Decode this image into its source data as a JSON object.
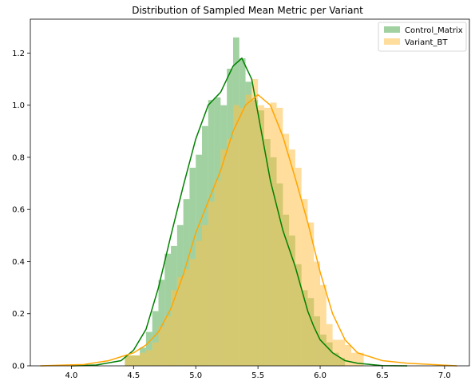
{
  "chart_data": {
    "type": "histogram",
    "title": "Distribution of Sampled Mean Metric per Variant",
    "xlabel": "",
    "ylabel": "",
    "xlim": [
      3.67,
      7.2
    ],
    "ylim": [
      0,
      1.33
    ],
    "x_ticks": [
      4.0,
      4.5,
      5.0,
      5.5,
      6.0,
      6.5,
      7.0
    ],
    "x_tick_labels": [
      "4.0",
      "4.5",
      "5.0",
      "5.5",
      "6.0",
      "6.5",
      "7.0"
    ],
    "y_ticks": [
      0.0,
      0.2,
      0.4,
      0.6,
      0.8,
      1.0,
      1.2
    ],
    "y_tick_labels": [
      "0.0",
      "0.2",
      "0.4",
      "0.6",
      "0.8",
      "1.0",
      "1.2"
    ],
    "grid": false,
    "legend_position": "top-right",
    "series": [
      {
        "name": "Control_Matrix",
        "color": "#008000",
        "fill_color": "#2e9a2e",
        "fill_opacity": 0.45,
        "bins": [
          {
            "x0": 4.43,
            "x1": 4.55,
            "y": 0.04
          },
          {
            "x0": 4.55,
            "x1": 4.6,
            "y": 0.07
          },
          {
            "x0": 4.6,
            "x1": 4.65,
            "y": 0.13
          },
          {
            "x0": 4.65,
            "x1": 4.7,
            "y": 0.21
          },
          {
            "x0": 4.7,
            "x1": 4.75,
            "y": 0.33
          },
          {
            "x0": 4.75,
            "x1": 4.8,
            "y": 0.43
          },
          {
            "x0": 4.8,
            "x1": 4.85,
            "y": 0.46
          },
          {
            "x0": 4.85,
            "x1": 4.9,
            "y": 0.54
          },
          {
            "x0": 4.9,
            "x1": 4.95,
            "y": 0.64
          },
          {
            "x0": 4.95,
            "x1": 5.0,
            "y": 0.76
          },
          {
            "x0": 5.0,
            "x1": 5.05,
            "y": 0.81
          },
          {
            "x0": 5.05,
            "x1": 5.1,
            "y": 0.92
          },
          {
            "x0": 5.1,
            "x1": 5.15,
            "y": 1.02
          },
          {
            "x0": 5.15,
            "x1": 5.2,
            "y": 1.03
          },
          {
            "x0": 5.2,
            "x1": 5.25,
            "y": 1.0
          },
          {
            "x0": 5.25,
            "x1": 5.3,
            "y": 1.14
          },
          {
            "x0": 5.3,
            "x1": 5.35,
            "y": 1.26
          },
          {
            "x0": 5.35,
            "x1": 5.4,
            "y": 1.18
          },
          {
            "x0": 5.4,
            "x1": 5.45,
            "y": 1.09
          },
          {
            "x0": 5.45,
            "x1": 5.5,
            "y": 1.02
          },
          {
            "x0": 5.5,
            "x1": 5.55,
            "y": 0.98
          },
          {
            "x0": 5.55,
            "x1": 5.6,
            "y": 0.87
          },
          {
            "x0": 5.6,
            "x1": 5.65,
            "y": 0.8
          },
          {
            "x0": 5.65,
            "x1": 5.7,
            "y": 0.7
          },
          {
            "x0": 5.7,
            "x1": 5.75,
            "y": 0.58
          },
          {
            "x0": 5.75,
            "x1": 5.8,
            "y": 0.5
          },
          {
            "x0": 5.8,
            "x1": 5.85,
            "y": 0.39
          },
          {
            "x0": 5.85,
            "x1": 5.9,
            "y": 0.29
          },
          {
            "x0": 5.9,
            "x1": 5.95,
            "y": 0.26
          },
          {
            "x0": 5.95,
            "x1": 6.0,
            "y": 0.19
          },
          {
            "x0": 6.0,
            "x1": 6.05,
            "y": 0.12
          },
          {
            "x0": 6.05,
            "x1": 6.1,
            "y": 0.09
          },
          {
            "x0": 6.1,
            "x1": 6.15,
            "y": 0.05
          },
          {
            "x0": 6.15,
            "x1": 6.2,
            "y": 0.03
          }
        ],
        "kde": [
          [
            4.0,
            0.0
          ],
          [
            4.2,
            0.003
          ],
          [
            4.4,
            0.02
          ],
          [
            4.5,
            0.06
          ],
          [
            4.6,
            0.14
          ],
          [
            4.7,
            0.3
          ],
          [
            4.8,
            0.5
          ],
          [
            4.9,
            0.69
          ],
          [
            5.0,
            0.87
          ],
          [
            5.1,
            1.0
          ],
          [
            5.2,
            1.05
          ],
          [
            5.3,
            1.15
          ],
          [
            5.37,
            1.18
          ],
          [
            5.45,
            1.1
          ],
          [
            5.5,
            0.97
          ],
          [
            5.6,
            0.71
          ],
          [
            5.7,
            0.52
          ],
          [
            5.8,
            0.38
          ],
          [
            5.9,
            0.21
          ],
          [
            5.95,
            0.15
          ],
          [
            6.0,
            0.1
          ],
          [
            6.1,
            0.05
          ],
          [
            6.2,
            0.02
          ],
          [
            6.3,
            0.01
          ],
          [
            6.5,
            0.001
          ],
          [
            6.7,
            0.0
          ]
        ]
      },
      {
        "name": "Variant_BT",
        "color": "#ffa500",
        "fill_color": "#ffc14a",
        "fill_opacity": 0.55,
        "bins": [
          {
            "x0": 4.43,
            "x1": 4.55,
            "y": 0.04
          },
          {
            "x0": 4.55,
            "x1": 4.6,
            "y": 0.05
          },
          {
            "x0": 4.6,
            "x1": 4.65,
            "y": 0.06
          },
          {
            "x0": 4.65,
            "x1": 4.7,
            "y": 0.09
          },
          {
            "x0": 4.7,
            "x1": 4.75,
            "y": 0.15
          },
          {
            "x0": 4.75,
            "x1": 4.8,
            "y": 0.19
          },
          {
            "x0": 4.8,
            "x1": 4.85,
            "y": 0.29
          },
          {
            "x0": 4.85,
            "x1": 4.9,
            "y": 0.34
          },
          {
            "x0": 4.9,
            "x1": 4.95,
            "y": 0.37
          },
          {
            "x0": 4.95,
            "x1": 5.0,
            "y": 0.41
          },
          {
            "x0": 5.0,
            "x1": 5.05,
            "y": 0.48
          },
          {
            "x0": 5.05,
            "x1": 5.1,
            "y": 0.54
          },
          {
            "x0": 5.1,
            "x1": 5.15,
            "y": 0.63
          },
          {
            "x0": 5.15,
            "x1": 5.2,
            "y": 0.71
          },
          {
            "x0": 5.2,
            "x1": 5.25,
            "y": 0.83
          },
          {
            "x0": 5.25,
            "x1": 5.3,
            "y": 0.87
          },
          {
            "x0": 5.3,
            "x1": 5.35,
            "y": 1.0
          },
          {
            "x0": 5.35,
            "x1": 5.4,
            "y": 0.99
          },
          {
            "x0": 5.4,
            "x1": 5.45,
            "y": 1.04
          },
          {
            "x0": 5.45,
            "x1": 5.5,
            "y": 1.1
          },
          {
            "x0": 5.5,
            "x1": 5.55,
            "y": 1.0
          },
          {
            "x0": 5.55,
            "x1": 5.6,
            "y": 0.99
          },
          {
            "x0": 5.6,
            "x1": 5.65,
            "y": 1.01
          },
          {
            "x0": 5.65,
            "x1": 5.7,
            "y": 0.99
          },
          {
            "x0": 5.7,
            "x1": 5.75,
            "y": 0.89
          },
          {
            "x0": 5.75,
            "x1": 5.8,
            "y": 0.83
          },
          {
            "x0": 5.8,
            "x1": 5.85,
            "y": 0.76
          },
          {
            "x0": 5.85,
            "x1": 5.9,
            "y": 0.64
          },
          {
            "x0": 5.9,
            "x1": 5.95,
            "y": 0.55
          },
          {
            "x0": 5.95,
            "x1": 6.0,
            "y": 0.4
          },
          {
            "x0": 6.0,
            "x1": 6.05,
            "y": 0.31
          },
          {
            "x0": 6.05,
            "x1": 6.1,
            "y": 0.16
          },
          {
            "x0": 6.1,
            "x1": 6.2,
            "y": 0.1
          },
          {
            "x0": 6.2,
            "x1": 6.25,
            "y": 0.08
          },
          {
            "x0": 6.25,
            "x1": 6.35,
            "y": 0.05
          }
        ],
        "kde": [
          [
            3.75,
            0.0
          ],
          [
            3.9,
            0.002
          ],
          [
            4.1,
            0.005
          ],
          [
            4.3,
            0.02
          ],
          [
            4.5,
            0.05
          ],
          [
            4.6,
            0.08
          ],
          [
            4.7,
            0.13
          ],
          [
            4.8,
            0.22
          ],
          [
            4.9,
            0.35
          ],
          [
            5.0,
            0.51
          ],
          [
            5.1,
            0.63
          ],
          [
            5.2,
            0.75
          ],
          [
            5.3,
            0.9
          ],
          [
            5.4,
            1.0
          ],
          [
            5.5,
            1.04
          ],
          [
            5.6,
            1.0
          ],
          [
            5.7,
            0.88
          ],
          [
            5.8,
            0.72
          ],
          [
            5.9,
            0.55
          ],
          [
            6.0,
            0.36
          ],
          [
            6.1,
            0.2
          ],
          [
            6.2,
            0.1
          ],
          [
            6.3,
            0.05
          ],
          [
            6.5,
            0.02
          ],
          [
            6.7,
            0.01
          ],
          [
            6.9,
            0.005
          ],
          [
            7.1,
            0.0
          ]
        ]
      }
    ]
  }
}
